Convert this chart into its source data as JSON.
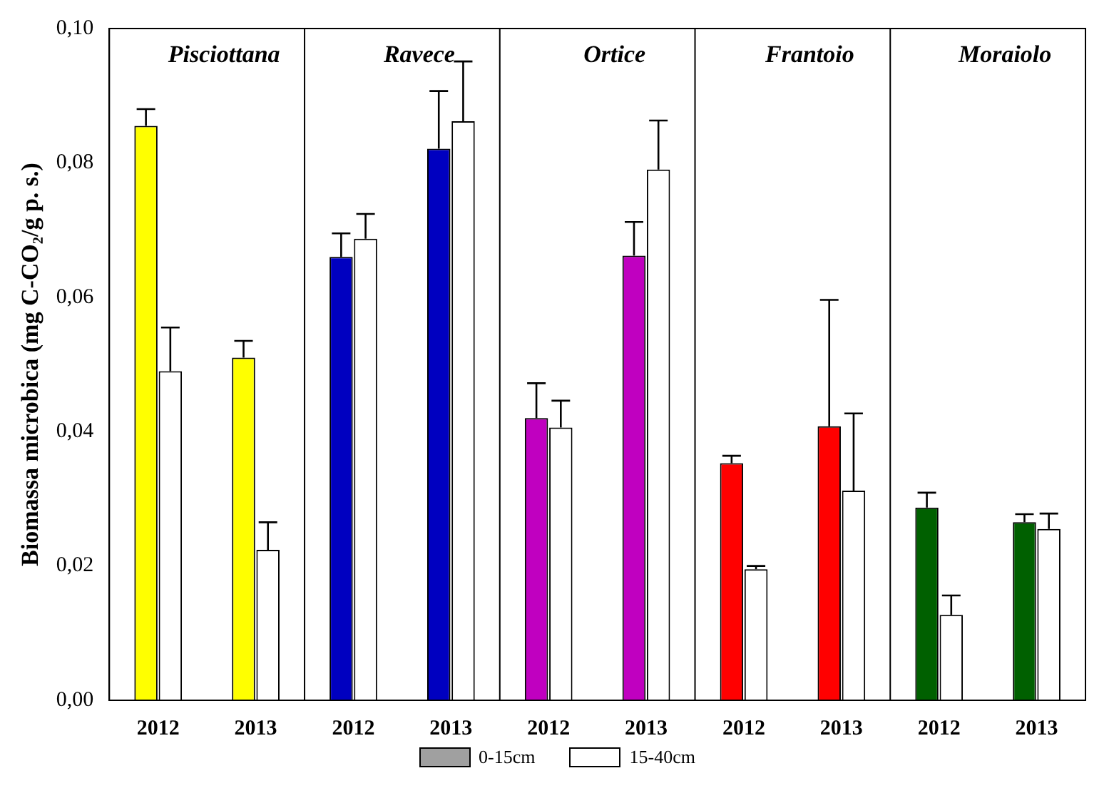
{
  "chart_data": {
    "type": "bar",
    "ylabel": "Biomassa microbica (mg C-CO₂/g p. s.)",
    "categories": [
      "2012",
      "2013",
      "2012",
      "2013",
      "2012",
      "2013",
      "2012",
      "2013",
      "2012",
      "2013"
    ],
    "series": [
      {
        "name": "0-15cm",
        "color": "#a0a0a0",
        "colors": [
          "#ffff00",
          "#ffff00",
          "#0000c0",
          "#0000c0",
          "#c000c0",
          "#c000c0",
          "#ff0000",
          "#ff0000",
          "#006000",
          "#006000"
        ],
        "values": [
          0.0855,
          0.051,
          0.066,
          0.0821,
          0.042,
          0.0662,
          0.0353,
          0.0408,
          0.0287,
          0.0265
        ],
        "errors": [
          [
            0.0855,
            0.088
          ],
          [
            0.051,
            0.0535
          ],
          [
            0.066,
            0.0695
          ],
          [
            0.0821,
            0.0907
          ],
          [
            0.042,
            0.0472
          ],
          [
            0.0662,
            0.0712
          ],
          [
            0.0353,
            0.0364
          ],
          [
            0.0408,
            0.0596
          ],
          [
            0.0287,
            0.0309
          ],
          [
            0.0265,
            0.0277
          ]
        ]
      },
      {
        "name": "15-40cm",
        "color": "#ffffff",
        "values": [
          0.049,
          0.0224,
          0.0687,
          0.0862,
          0.0406,
          0.079,
          0.0195,
          0.0312,
          0.0127,
          0.0255
        ],
        "errors": [
          [
            0.049,
            0.0555
          ],
          [
            0.0224,
            0.0265
          ],
          [
            0.0687,
            0.0724
          ],
          [
            0.0862,
            0.0951
          ],
          [
            0.0406,
            0.0446
          ],
          [
            0.079,
            0.0863
          ],
          [
            0.0195,
            0.02
          ],
          [
            0.0312,
            0.0427
          ],
          [
            0.0127,
            0.0156
          ],
          [
            0.0255,
            0.0278
          ]
        ]
      }
    ],
    "annotations": [
      "Pisciottana",
      "Ravece",
      "Ortice",
      "Frantoio",
      "Moraiolo"
    ],
    "ylim": [
      0,
      0.1
    ],
    "yticks": [
      {
        "value": 0,
        "label": "0,00"
      },
      {
        "value": 0.02,
        "label": "0,02"
      },
      {
        "value": 0.04,
        "label": "0,04"
      },
      {
        "value": 0.06,
        "label": "0,06"
      },
      {
        "value": 0.08,
        "label": "0,08"
      },
      {
        "value": 0.1,
        "label": "0,10"
      }
    ],
    "legend": "bottom"
  }
}
